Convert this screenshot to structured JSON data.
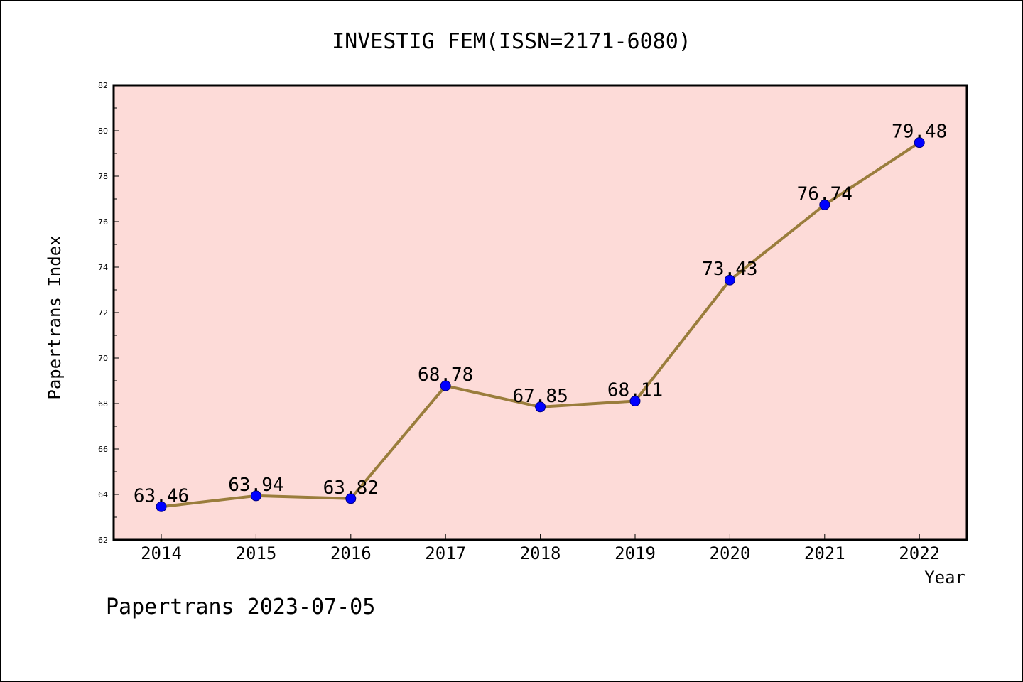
{
  "chart_data": {
    "type": "line",
    "title": "INVESTIG FEM(ISSN=2171-6080)",
    "xlabel": "Year",
    "ylabel": "Papertrans Index",
    "footer": "Papertrans 2023-07-05",
    "categories": [
      "2014",
      "2015",
      "2016",
      "2017",
      "2018",
      "2019",
      "2020",
      "2021",
      "2022"
    ],
    "series": [
      {
        "values": [
          63.46,
          63.94,
          63.82,
          68.78,
          67.85,
          68.11,
          73.43,
          76.74,
          79.48
        ],
        "labels": [
          "63.46",
          "63.94",
          "63.82",
          "68.78",
          "67.85",
          "68.11",
          "73.43",
          "76.74",
          "79.48"
        ]
      }
    ],
    "ylim": [
      62,
      82
    ],
    "yticks": [
      "62",
      "64",
      "66",
      "68",
      "70",
      "72",
      "74",
      "76",
      "78",
      "80",
      "82"
    ],
    "colors": {
      "plot_background": "#fddbd8",
      "line": "#9a7d3c",
      "marker": "#0000ff",
      "marker_edge": "#000080"
    }
  }
}
